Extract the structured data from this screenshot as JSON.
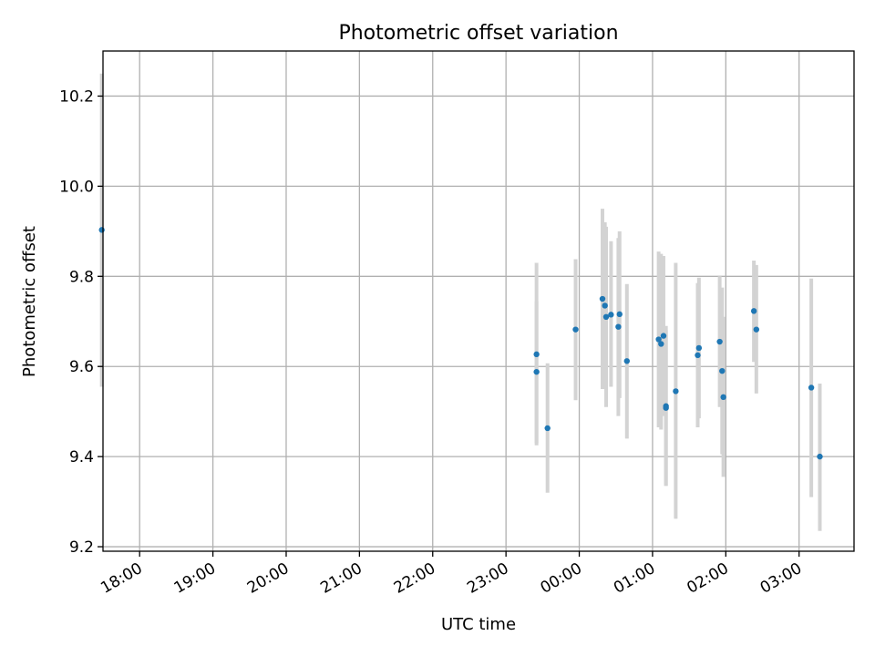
{
  "chart_data": {
    "type": "scatter",
    "title": "Photometric offset variation",
    "xlabel": "UTC time",
    "ylabel": "Photometric offset",
    "grid": true,
    "xlim": [
      "17:30",
      "03:45"
    ],
    "ylim": [
      9.19,
      10.3
    ],
    "x_ticks": [
      "18:00",
      "19:00",
      "20:00",
      "21:00",
      "22:00",
      "23:00",
      "00:00",
      "01:00",
      "02:00",
      "03:00"
    ],
    "y_ticks": [
      "9.2",
      "9.4",
      "9.6",
      "9.8",
      "10.0",
      "10.2"
    ],
    "colors": {
      "marker": "#1f77b4",
      "errorbar": "#d3d3d3",
      "grid": "#b0b0b0"
    },
    "points": [
      {
        "x": "17:29",
        "y": 9.903,
        "ylow": 9.555,
        "yhigh": 10.25
      },
      {
        "x": "23:25",
        "y": 9.627,
        "ylow": 9.425,
        "yhigh": 9.83
      },
      {
        "x": "23:25",
        "y": 9.588,
        "ylow": 9.43,
        "yhigh": 9.745
      },
      {
        "x": "23:34",
        "y": 9.463,
        "ylow": 9.32,
        "yhigh": 9.607
      },
      {
        "x": "23:57",
        "y": 9.682,
        "ylow": 9.525,
        "yhigh": 9.838
      },
      {
        "x": "00:19",
        "y": 9.75,
        "ylow": 9.55,
        "yhigh": 9.95
      },
      {
        "x": "00:21",
        "y": 9.735,
        "ylow": 9.55,
        "yhigh": 9.92
      },
      {
        "x": "00:22",
        "y": 9.71,
        "ylow": 9.51,
        "yhigh": 9.91
      },
      {
        "x": "00:26",
        "y": 9.715,
        "ylow": 9.555,
        "yhigh": 9.878
      },
      {
        "x": "00:32",
        "y": 9.688,
        "ylow": 9.49,
        "yhigh": 9.885
      },
      {
        "x": "00:33",
        "y": 9.716,
        "ylow": 9.53,
        "yhigh": 9.9
      },
      {
        "x": "00:39",
        "y": 9.612,
        "ylow": 9.44,
        "yhigh": 9.783
      },
      {
        "x": "01:05",
        "y": 9.66,
        "ylow": 9.465,
        "yhigh": 9.855
      },
      {
        "x": "01:07",
        "y": 9.65,
        "ylow": 9.46,
        "yhigh": 9.85
      },
      {
        "x": "01:09",
        "y": 9.668,
        "ylow": 9.49,
        "yhigh": 9.845
      },
      {
        "x": "01:11",
        "y": 9.512,
        "ylow": 9.335,
        "yhigh": 9.69
      },
      {
        "x": "01:11",
        "y": 9.508,
        "ylow": 9.335,
        "yhigh": 9.68
      },
      {
        "x": "01:19",
        "y": 9.545,
        "ylow": 9.262,
        "yhigh": 9.83
      },
      {
        "x": "01:37",
        "y": 9.625,
        "ylow": 9.465,
        "yhigh": 9.785
      },
      {
        "x": "01:38",
        "y": 9.641,
        "ylow": 9.485,
        "yhigh": 9.797
      },
      {
        "x": "01:55",
        "y": 9.655,
        "ylow": 9.51,
        "yhigh": 9.8
      },
      {
        "x": "01:57",
        "y": 9.59,
        "ylow": 9.405,
        "yhigh": 9.775
      },
      {
        "x": "01:58",
        "y": 9.532,
        "ylow": 9.355,
        "yhigh": 9.71
      },
      {
        "x": "02:23",
        "y": 9.723,
        "ylow": 9.61,
        "yhigh": 9.835
      },
      {
        "x": "02:25",
        "y": 9.682,
        "ylow": 9.54,
        "yhigh": 9.825
      },
      {
        "x": "03:10",
        "y": 9.553,
        "ylow": 9.31,
        "yhigh": 9.795
      },
      {
        "x": "03:17",
        "y": 9.4,
        "ylow": 9.235,
        "yhigh": 9.562
      }
    ]
  }
}
